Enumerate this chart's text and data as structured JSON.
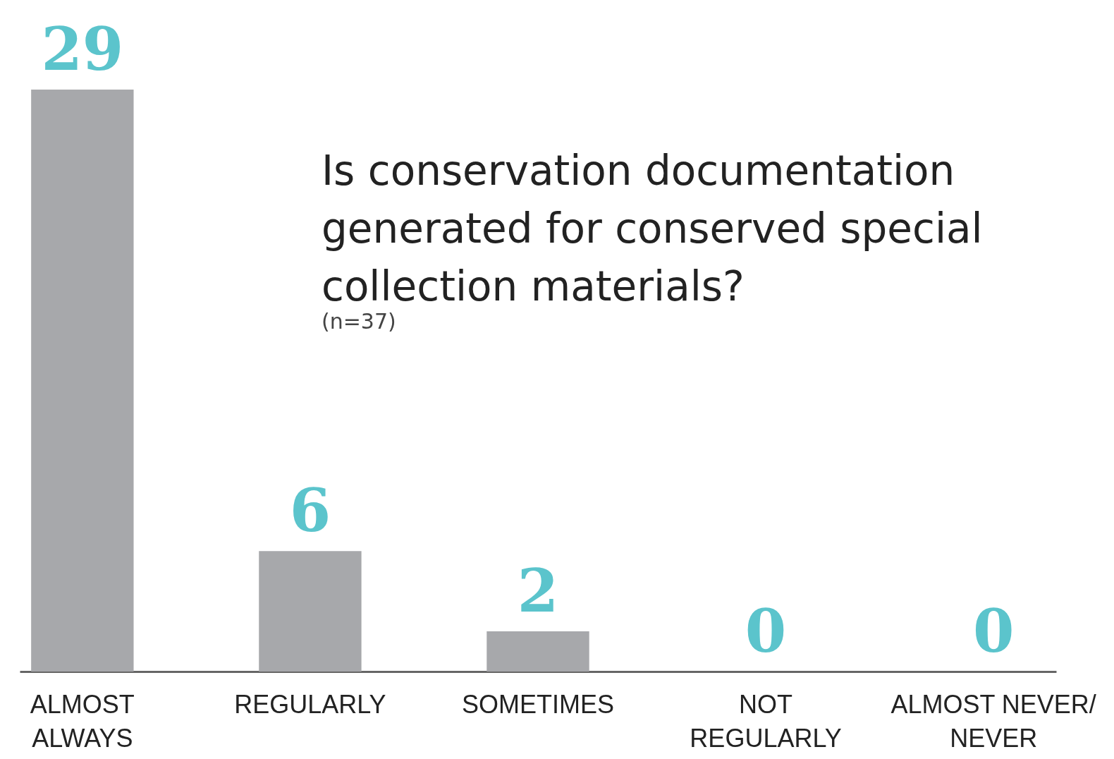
{
  "chart_data": {
    "type": "bar",
    "title": "Is conservation documentation generated for conserved special collection materials?",
    "subtitle": "(n=37)",
    "categories": [
      "ALMOST ALWAYS",
      "REGULARLY",
      "SOMETIMES",
      "NOT REGULARLY",
      "ALMOST NEVER/ NEVER"
    ],
    "values": [
      29,
      6,
      2,
      0,
      0
    ],
    "color": "#a7a8ab",
    "data_labels": true
  }
}
